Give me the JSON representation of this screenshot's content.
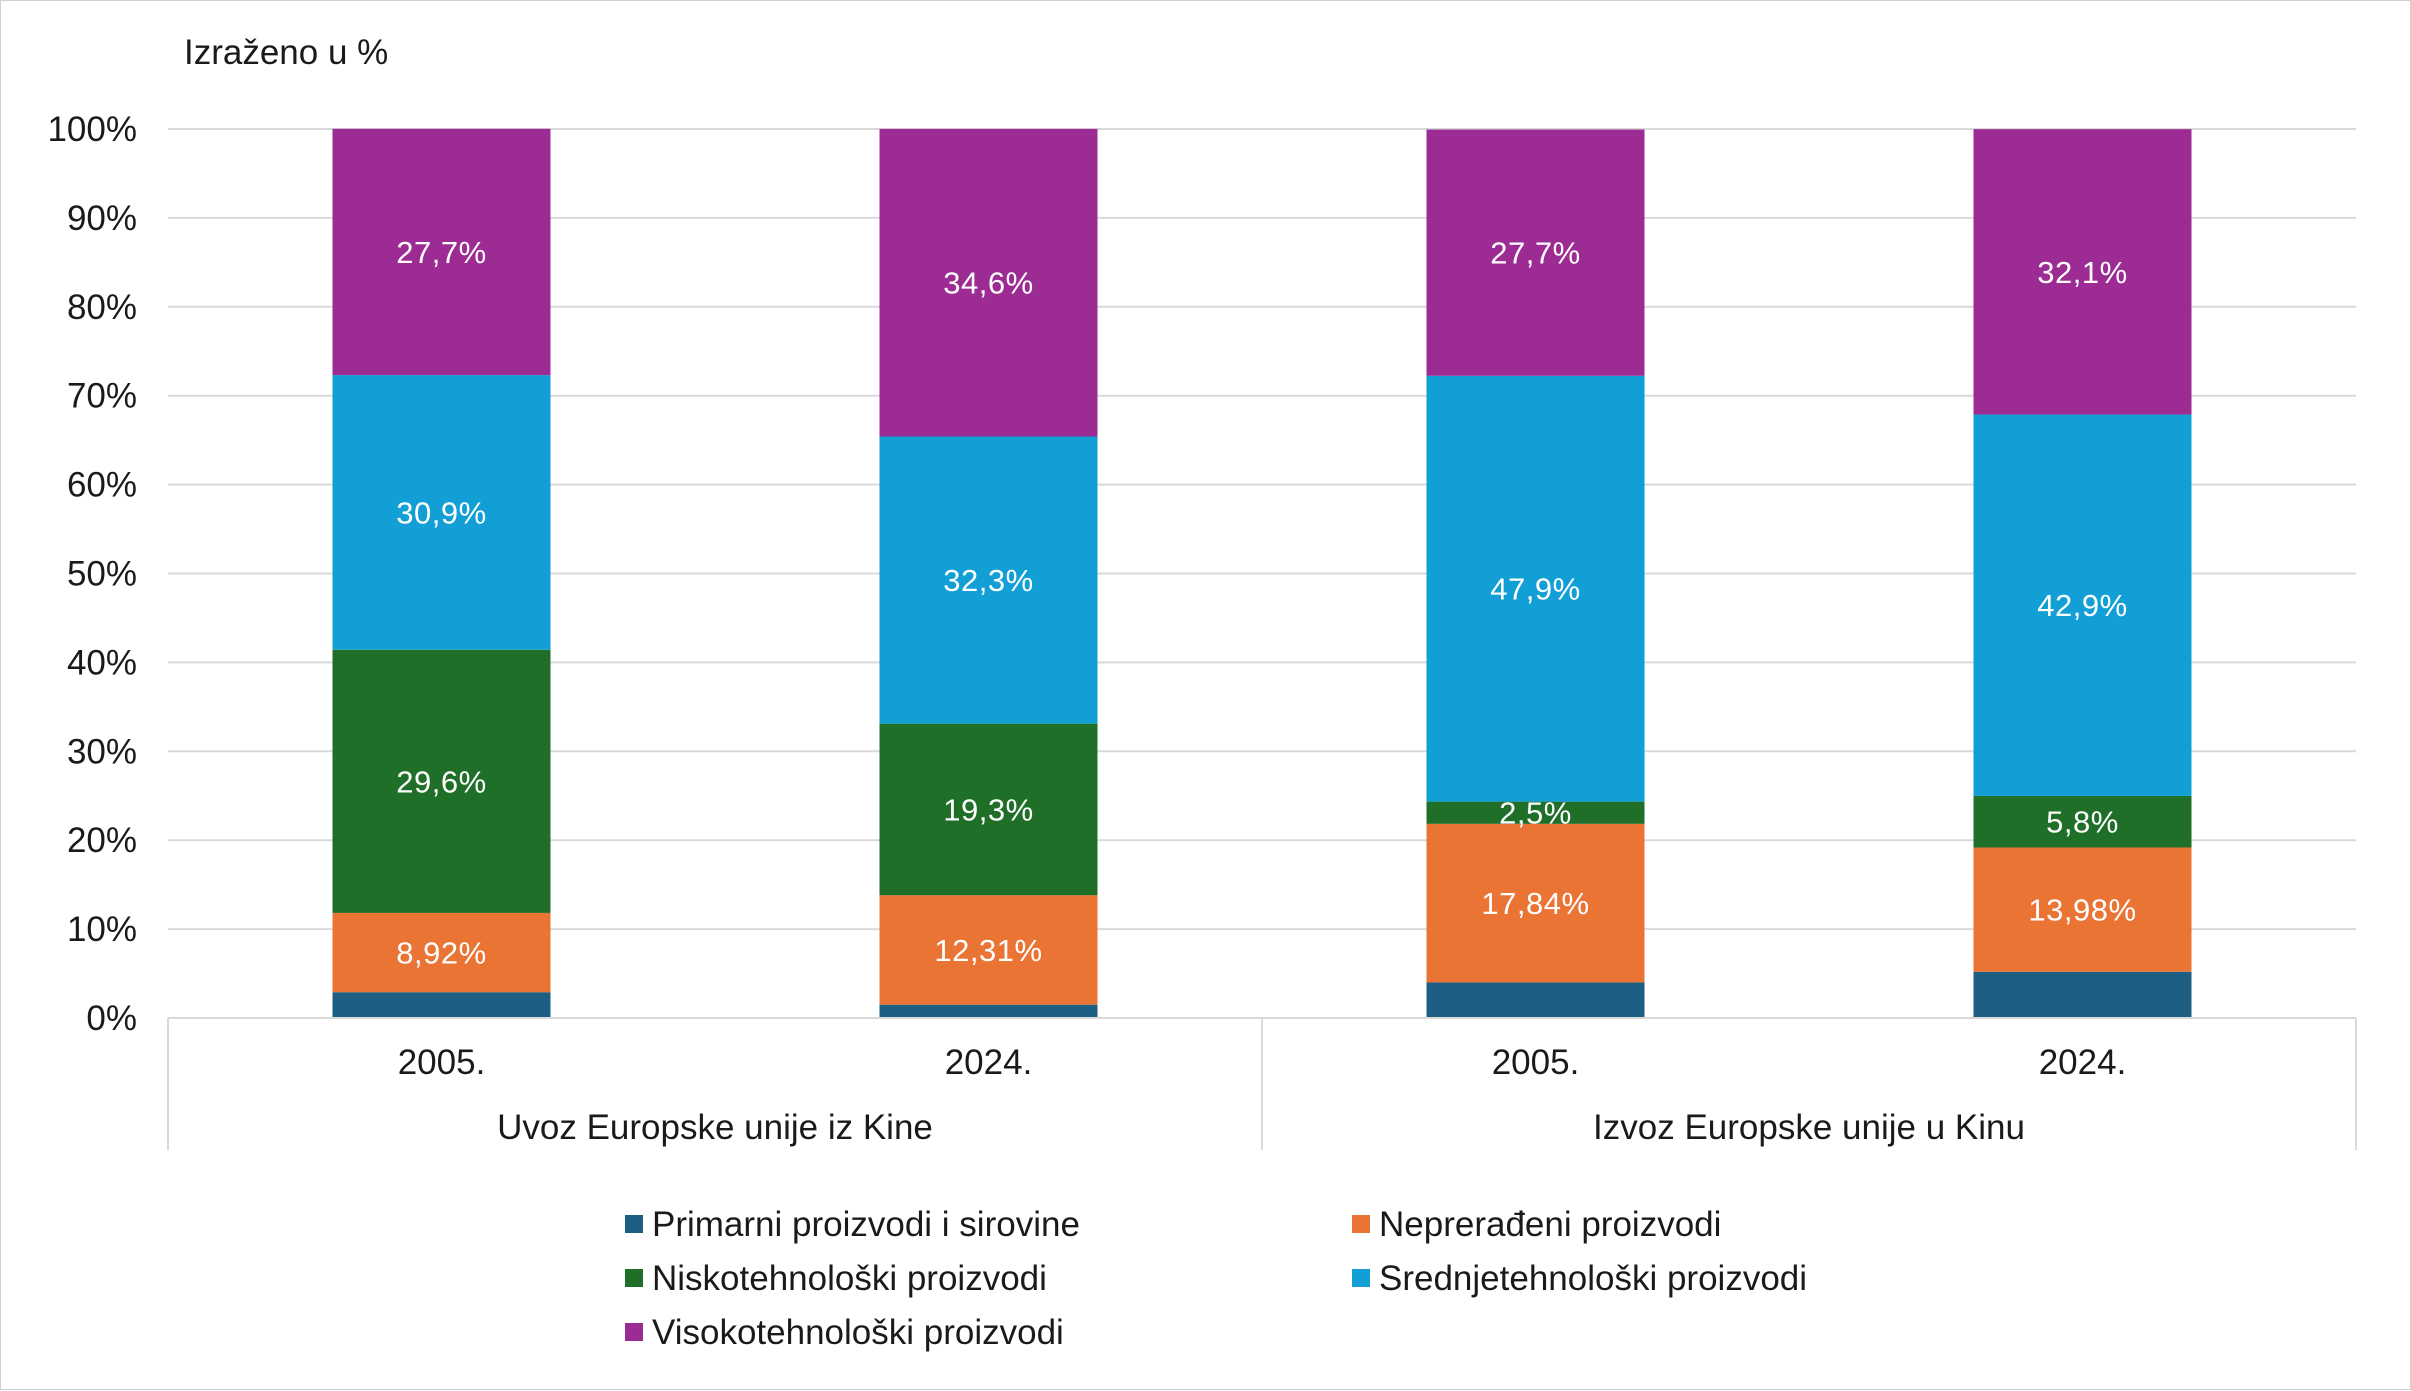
{
  "chart_data": {
    "type": "bar",
    "stacked": true,
    "normalized": true,
    "unit_note": "Izraženo u %",
    "y_ticks": [
      "0%",
      "10%",
      "20%",
      "30%",
      "40%",
      "50%",
      "60%",
      "70%",
      "80%",
      "90%",
      "100%"
    ],
    "ylim": [
      0,
      100
    ],
    "grid": true,
    "legend_position": "bottom",
    "groups": [
      {
        "label": "Uvoz Europske unije iz Kine",
        "categories": [
          "2005.",
          "2024."
        ]
      },
      {
        "label": "Izvoz Europske unije u Kinu",
        "categories": [
          "2005.",
          "2024."
        ]
      }
    ],
    "series": [
      {
        "name": "Primarni proizvodi i sirovine",
        "color": "#1c5f82",
        "values": [
          2.9,
          1.5,
          4.0,
          5.2
        ],
        "labels": [
          "",
          "",
          "",
          ""
        ]
      },
      {
        "name": "Neprerađeni proizvodi",
        "color": "#ea7434",
        "values": [
          8.92,
          12.31,
          17.84,
          13.98
        ],
        "labels": [
          "8,92%",
          "12,31%",
          "17,84%",
          "13,98%"
        ]
      },
      {
        "name": "Niskotehnološki proizvodi",
        "color": "#1f6f29",
        "values": [
          29.6,
          19.3,
          2.5,
          5.8
        ],
        "labels": [
          "29,6%",
          "19,3%",
          "2,5%",
          "5,8%"
        ]
      },
      {
        "name": "Srednjetehnološki proizvodi",
        "color": "#119fd6",
        "values": [
          30.9,
          32.3,
          47.9,
          42.9
        ],
        "labels": [
          "30,9%",
          "32,3%",
          "47,9%",
          "42,9%"
        ]
      },
      {
        "name": "Visokotehnološki proizvodi",
        "color": "#9d2b94",
        "values": [
          27.7,
          34.6,
          27.7,
          32.1
        ],
        "labels": [
          "27,7%",
          "34,6%",
          "27,7%",
          "32,1%"
        ]
      }
    ]
  }
}
